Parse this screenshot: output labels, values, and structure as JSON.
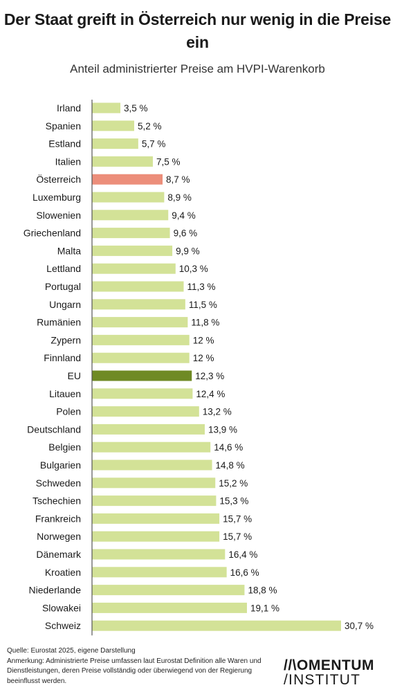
{
  "title": "Der Staat greift in Österreich nur wenig in die Preise ein",
  "subtitle": "Anteil administrierter Preise am HVPI-Warenkorb",
  "footer": {
    "source": "Quelle: Eurostat 2025, eigene Darstellung",
    "note": "Anmerkung: Administrierte Preise umfassen laut Eurostat Definition alle Waren und Dienstleistungen, deren Preise vollständig oder überwiegend von der Regierung beeinflusst werden."
  },
  "logo": {
    "line1": "//\\OMENTUM",
    "line2": "/INSTITUT"
  },
  "colors": {
    "default": "#d3e297",
    "highlight_austria": "#ec8e7a",
    "highlight_eu": "#6f8a24",
    "axis": "#555555"
  },
  "chart_data": {
    "type": "bar",
    "orientation": "horizontal",
    "unit": "%",
    "categories": [
      "Irland",
      "Spanien",
      "Estland",
      "Italien",
      "Österreich",
      "Luxemburg",
      "Slowenien",
      "Griechenland",
      "Malta",
      "Lettland",
      "Portugal",
      "Ungarn",
      "Rumänien",
      "Zypern",
      "Finnland",
      "EU",
      "Litauen",
      "Polen",
      "Deutschland",
      "Belgien",
      "Bulgarien",
      "Schweden",
      "Tschechien",
      "Frankreich",
      "Norwegen",
      "Dänemark",
      "Kroatien",
      "Niederlande",
      "Slowakei",
      "Schweiz"
    ],
    "values": [
      3.5,
      5.2,
      5.7,
      7.5,
      8.7,
      8.9,
      9.4,
      9.6,
      9.9,
      10.3,
      11.3,
      11.5,
      11.8,
      12,
      12,
      12.3,
      12.4,
      13.2,
      13.9,
      14.6,
      14.8,
      15.2,
      15.3,
      15.7,
      15.7,
      16.4,
      16.6,
      18.8,
      19.1,
      30.7
    ],
    "value_labels": [
      "3,5 %",
      "5,2 %",
      "5,7 %",
      "7,5 %",
      "8,7 %",
      "8,9 %",
      "9,4 %",
      "9,6 %",
      "9,9 %",
      "10,3 %",
      "11,3 %",
      "11,5 %",
      "11,8 %",
      "12 %",
      "12 %",
      "12,3 %",
      "12,4 %",
      "13,2 %",
      "13,9 %",
      "14,6 %",
      "14,8 %",
      "15,2 %",
      "15,3 %",
      "15,7 %",
      "15,7 %",
      "16,4 %",
      "16,6 %",
      "18,8 %",
      "19,1 %",
      "30,7 %"
    ],
    "highlight": {
      "Österreich": "highlight_austria",
      "EU": "highlight_eu"
    },
    "xlim": [
      0,
      30.7
    ],
    "grid": false,
    "legend": "none"
  }
}
